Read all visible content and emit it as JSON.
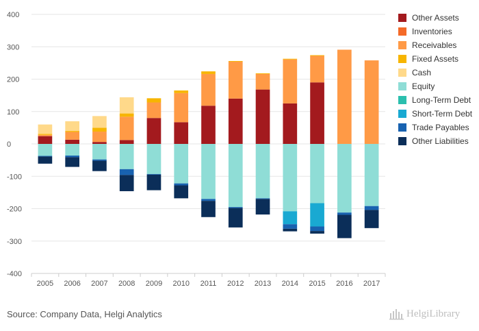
{
  "chart_data": {
    "type": "bar",
    "stacked": true,
    "categories": [
      "2005",
      "2006",
      "2007",
      "2008",
      "2009",
      "2010",
      "2011",
      "2012",
      "2013",
      "2014",
      "2015",
      "2016",
      "2017"
    ],
    "ylim": [
      -400,
      400
    ],
    "yticks": [
      400,
      300,
      200,
      100,
      0,
      -100,
      -200,
      -300,
      -400
    ],
    "grid": true,
    "legend_position": "right",
    "series": [
      {
        "name": "Other Assets",
        "color": "#A31A1E",
        "values": [
          24,
          13,
          6,
          12,
          80,
          67,
          118,
          140,
          168,
          125,
          190,
          0,
          0
        ]
      },
      {
        "name": "Inventories",
        "color": "#F46A28",
        "values": [
          0,
          0,
          0,
          0,
          0,
          0,
          0,
          0,
          0,
          0,
          0,
          0,
          0
        ]
      },
      {
        "name": "Receivables",
        "color": "#FF9A46",
        "values": [
          4,
          24,
          32,
          72,
          48,
          90,
          98,
          114,
          48,
          136,
          82,
          291,
          258
        ]
      },
      {
        "name": "Fixed Assets",
        "color": "#F7B500",
        "values": [
          3,
          3,
          12,
          10,
          13,
          8,
          8,
          2,
          2,
          2,
          2,
          0,
          0
        ]
      },
      {
        "name": "Cash",
        "color": "#FFD98A",
        "values": [
          29,
          30,
          36,
          50,
          0,
          0,
          0,
          0,
          0,
          0,
          0,
          0,
          0
        ]
      },
      {
        "name": "Equity",
        "color": "#8FDDD6",
        "values": [
          -37,
          -36,
          -48,
          -78,
          -93,
          -122,
          -170,
          -195,
          -168,
          -208,
          -183,
          -212,
          -192
        ]
      },
      {
        "name": "Long-Term Debt",
        "color": "#2BBFAE",
        "values": [
          0,
          0,
          0,
          0,
          0,
          0,
          0,
          0,
          0,
          0,
          0,
          0,
          0
        ]
      },
      {
        "name": "Short-Term Debt",
        "color": "#19A9D2",
        "values": [
          0,
          0,
          0,
          0,
          0,
          0,
          0,
          0,
          0,
          -40,
          -72,
          0,
          0
        ]
      },
      {
        "name": "Trade Payables",
        "color": "#1862B0",
        "values": [
          -2,
          -5,
          -4,
          -18,
          -2,
          -6,
          -6,
          -3,
          -2,
          -14,
          -14,
          -7,
          -12
        ]
      },
      {
        "name": "Other Liabilities",
        "color": "#0B2E59",
        "values": [
          -22,
          -30,
          -32,
          -50,
          -48,
          -40,
          -50,
          -60,
          -48,
          -8,
          -8,
          -72,
          -56
        ]
      }
    ]
  },
  "source": "Source: Company Data, Helgi Analytics",
  "logo": {
    "text": "HelgiLibrary"
  }
}
